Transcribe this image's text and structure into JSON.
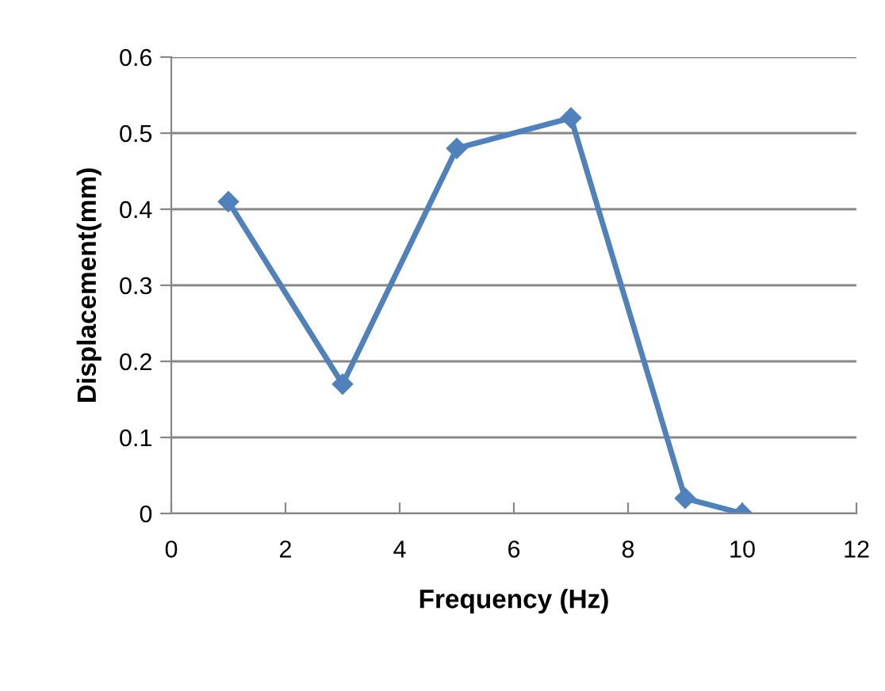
{
  "chart_data": {
    "type": "line",
    "xlabel": "Frequency (Hz)",
    "ylabel": "Displacement(mm)",
    "x": [
      1,
      3,
      5,
      7,
      9,
      10
    ],
    "series": [
      {
        "color": "#4f81bd",
        "values": [
          0.41,
          0.17,
          0.48,
          0.52,
          0.02,
          0.0
        ]
      }
    ],
    "xlim": [
      0,
      12
    ],
    "xticks": [
      0,
      2,
      4,
      6,
      8,
      10,
      12
    ],
    "ylim": [
      0,
      0.6
    ],
    "yticks": [
      0,
      0.1,
      0.2,
      0.3,
      0.4,
      0.5,
      0.6
    ],
    "grid": "y",
    "marker": "diamond",
    "line_style": "solid",
    "legend": false
  }
}
